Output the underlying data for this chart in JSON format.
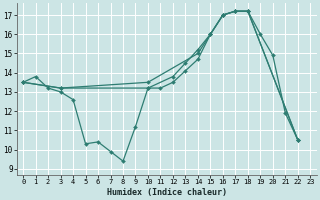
{
  "title": "",
  "xlabel": "Humidex (Indice chaleur)",
  "bg_color": "#cce5e5",
  "grid_color": "#ffffff",
  "line_color": "#2e7d72",
  "xlim": [
    -0.5,
    23.5
  ],
  "ylim": [
    8.7,
    17.6
  ],
  "yticks": [
    9,
    10,
    11,
    12,
    13,
    14,
    15,
    16,
    17
  ],
  "xticks": [
    0,
    1,
    2,
    3,
    4,
    5,
    6,
    7,
    8,
    9,
    10,
    11,
    12,
    13,
    14,
    15,
    16,
    17,
    18,
    19,
    20,
    21,
    22,
    23
  ],
  "line1_x": [
    0,
    1,
    2,
    3,
    4,
    5,
    6,
    7,
    8,
    9,
    10,
    11,
    12,
    13,
    14,
    15,
    16,
    17,
    18,
    19,
    20,
    21,
    22
  ],
  "line1_y": [
    13.5,
    13.8,
    13.2,
    13.0,
    12.6,
    10.3,
    10.4,
    9.9,
    9.4,
    11.2,
    13.2,
    13.2,
    13.5,
    14.1,
    14.7,
    16.0,
    17.0,
    17.2,
    17.2,
    16.0,
    14.9,
    11.9,
    10.5
  ],
  "line2_x": [
    0,
    3,
    10,
    14,
    15,
    16,
    17,
    18,
    22
  ],
  "line2_y": [
    13.5,
    13.2,
    13.5,
    15.0,
    16.0,
    17.0,
    17.2,
    17.2,
    10.5
  ],
  "line3_x": [
    0,
    3,
    10,
    12,
    13,
    14,
    15,
    16,
    17,
    18,
    22
  ],
  "line3_y": [
    13.5,
    13.2,
    13.2,
    13.8,
    14.5,
    15.2,
    16.0,
    17.0,
    17.2,
    17.2,
    10.5
  ]
}
